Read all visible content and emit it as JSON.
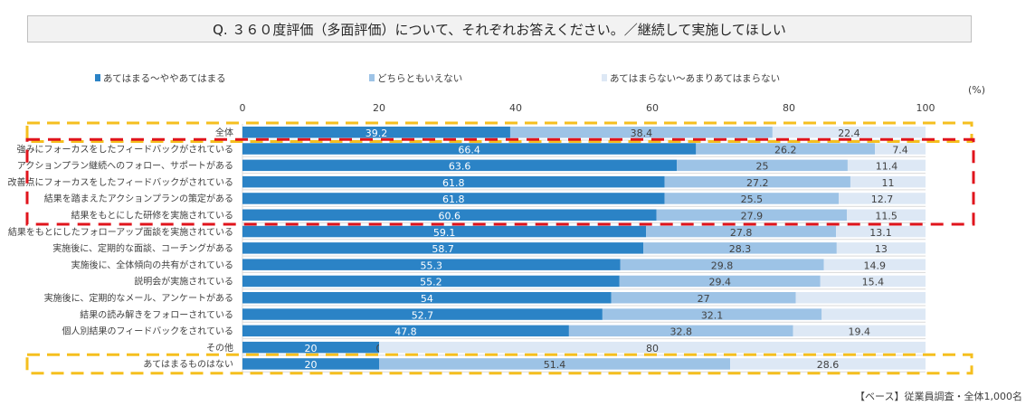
{
  "title": "Q. ３６０度評価（多面評価）について、それぞれお答えください。／継続して実施してほしい",
  "footer": "【ベース】従業員調査・全体1,000名",
  "chart_data": {
    "type": "bar",
    "orientation": "horizontal",
    "stacked": true,
    "title": "Q. ３６０度評価（多面評価）について、それぞれお答えください。／継続して実施してほしい",
    "unit_label": "(%)",
    "xlim": [
      0,
      100
    ],
    "x_ticks": [
      0,
      20,
      40,
      60,
      80,
      100
    ],
    "legend_position": "top",
    "categories": [
      "全体",
      "強みにフォーカスをしたフィードバックがされている",
      "アクションプラン継続へのフォロー、サポートがある",
      "改善点にフォーカスをしたフィードバックがされている",
      "結果を踏まえたアクションプランの策定がある",
      "結果をもとにした研修を実施されている",
      "結果をもとにしたフォローアップ面談を実施されている",
      "実施後に、定期的な面談、コーチングがある",
      "実施後に、全体傾向の共有がされている",
      "説明会が実施されている",
      "実施後に、定期的なメール、アンケートがある",
      "結果の読み解きをフォローされている",
      "個人別結果のフィードバックをされている",
      "その他",
      "あてはまるものはない"
    ],
    "series": [
      {
        "name": "あてはまる～ややあてはまる",
        "color": "#2b83c6",
        "values": [
          39.2,
          66.4,
          63.6,
          61.8,
          61.8,
          60.6,
          59.1,
          58.7,
          55.3,
          55.2,
          54,
          52.7,
          47.8,
          20,
          20
        ],
        "labels": [
          "39.2",
          "66.4",
          "63.6",
          "61.8",
          "61.8",
          "60.6",
          "59.1",
          "58.7",
          "55.3",
          "55.2",
          "54",
          "52.7",
          "47.8",
          "20",
          "20"
        ]
      },
      {
        "name": "どちらともいえない",
        "color": "#9dc3e6",
        "values": [
          38.4,
          26.2,
          25,
          27.2,
          25.5,
          27.9,
          27.8,
          28.3,
          29.8,
          29.4,
          27,
          32.1,
          32.8,
          0,
          51.4
        ],
        "labels": [
          "38.4",
          "26.2",
          "25",
          "27.2",
          "25.5",
          "27.9",
          "27.8",
          "28.3",
          "29.8",
          "29.4",
          "27",
          "32.1",
          "32.8",
          "0",
          "51.4"
        ]
      },
      {
        "name": "あてはまらない～あまりあてはまらない",
        "color": "#dde8f5",
        "values": [
          22.4,
          7.4,
          11.4,
          11,
          12.7,
          11.5,
          13.1,
          13,
          14.9,
          15.4,
          19,
          15.2,
          19.4,
          80,
          28.6
        ],
        "labels": [
          "22.4",
          "7.4",
          "11.4",
          "11",
          "12.7",
          "11.5",
          "13.1",
          "13",
          "14.9",
          "15.4",
          "",
          "",
          "19.4",
          "80",
          "28.6"
        ]
      }
    ],
    "highlight_groups": [
      {
        "style": "yellow-dashed",
        "color": "#f5bf1f",
        "rows": [
          0
        ]
      },
      {
        "style": "red-dashed",
        "color": "#e0141c",
        "rows": [
          1,
          2,
          3,
          4,
          5
        ]
      },
      {
        "style": "yellow-dashed",
        "color": "#f5bf1f",
        "rows": [
          14
        ]
      }
    ]
  }
}
